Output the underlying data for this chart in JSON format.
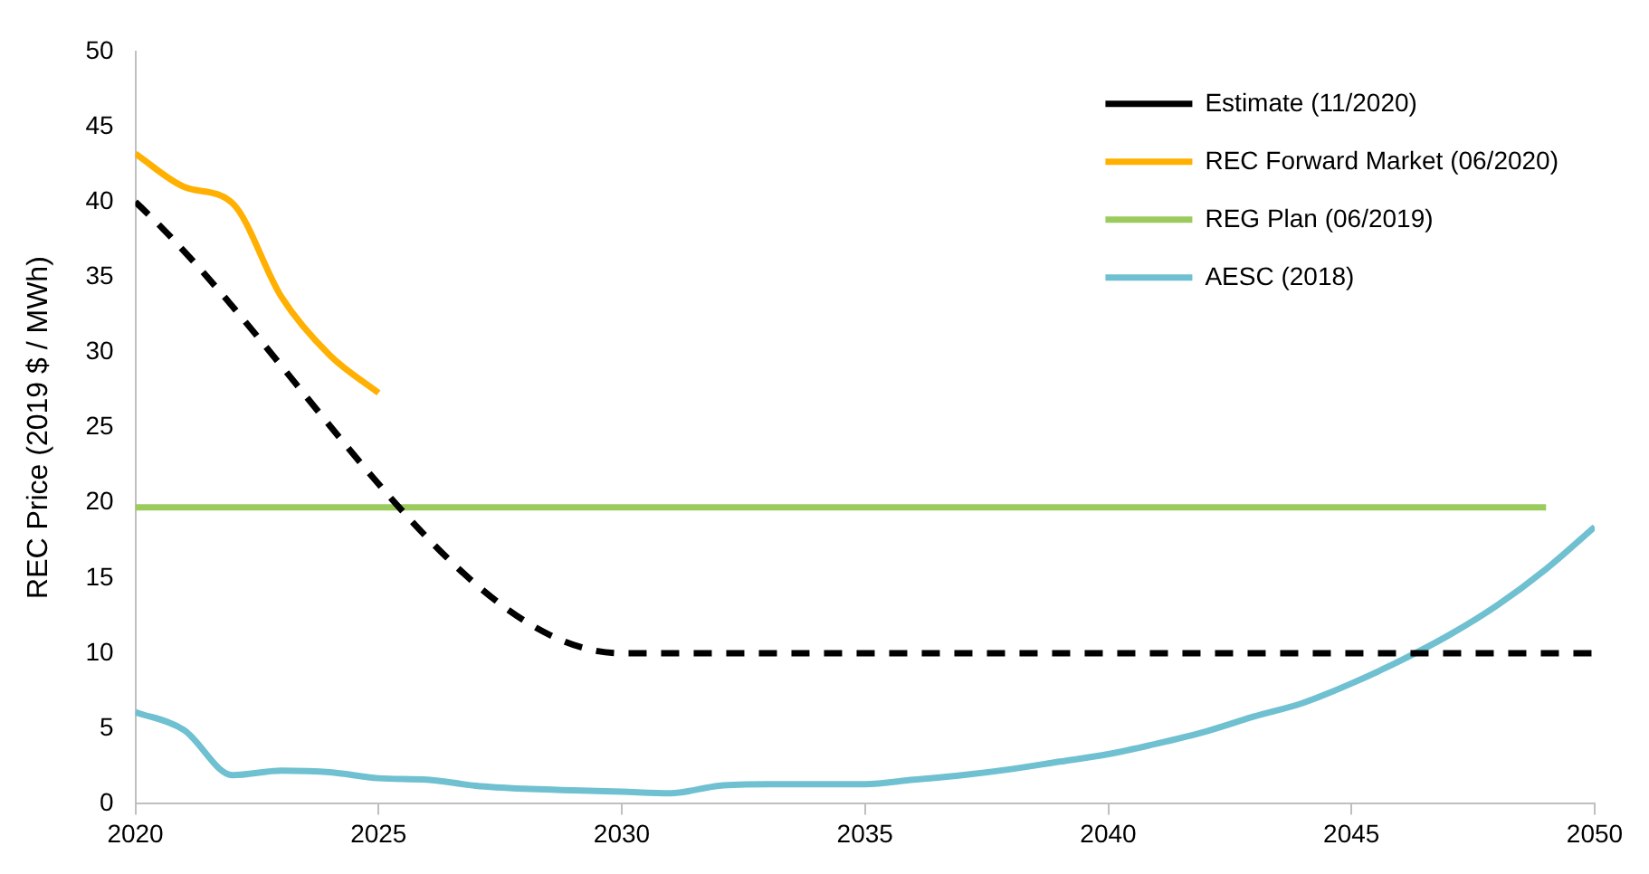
{
  "chart_data": {
    "type": "line",
    "ylabel": "REC Price (2019 $ / MWh)",
    "xlim": [
      2020,
      2050
    ],
    "xticks": [
      2020,
      2025,
      2030,
      2035,
      2040,
      2045,
      2050
    ],
    "ylim": [
      0,
      50
    ],
    "yticks": [
      0,
      5,
      10,
      15,
      20,
      25,
      30,
      35,
      40,
      45,
      50
    ],
    "grid": false,
    "legend": "top right",
    "marker": "none",
    "series": [
      {
        "name": "Estimate (11/2020)",
        "color": "#000000",
        "line_style": "dashed",
        "x": [
          2020,
          2030,
          2050
        ],
        "values": [
          40,
          10,
          10
        ]
      },
      {
        "name": "REC Forward Market (06/2020)",
        "color": "#ffb000",
        "line_style": "solid",
        "x": [
          2020,
          2021,
          2022,
          2023,
          2024,
          2025
        ],
        "values": [
          43.2,
          41,
          39.9,
          33.7,
          29.8,
          27.3
        ]
      },
      {
        "name": "REG Plan (06/2019)",
        "color": "#9acb5c",
        "line_style": "solid",
        "x": [
          2020,
          2049
        ],
        "values": [
          19.7,
          19.7
        ]
      },
      {
        "name": "AESC (2018)",
        "color": "#6fc0d0",
        "line_style": "solid",
        "x": [
          2020,
          2021,
          2022,
          2023,
          2024,
          2025,
          2026,
          2027,
          2028,
          2029,
          2030,
          2031,
          2032,
          2033,
          2034,
          2035,
          2036,
          2037,
          2038,
          2039,
          2040,
          2041,
          2042,
          2043,
          2044,
          2045,
          2046,
          2047,
          2048,
          2049,
          2050
        ],
        "values": [
          6.1,
          4.9,
          1.9,
          2.2,
          2.1,
          1.7,
          1.6,
          1.2,
          1.0,
          0.9,
          0.8,
          0.7,
          1.2,
          1.3,
          1.3,
          1.3,
          1.6,
          1.9,
          2.3,
          2.8,
          3.3,
          4.0,
          4.8,
          5.8,
          6.7,
          8.0,
          9.5,
          11.2,
          13.2,
          15.6,
          18.4
        ]
      }
    ]
  }
}
